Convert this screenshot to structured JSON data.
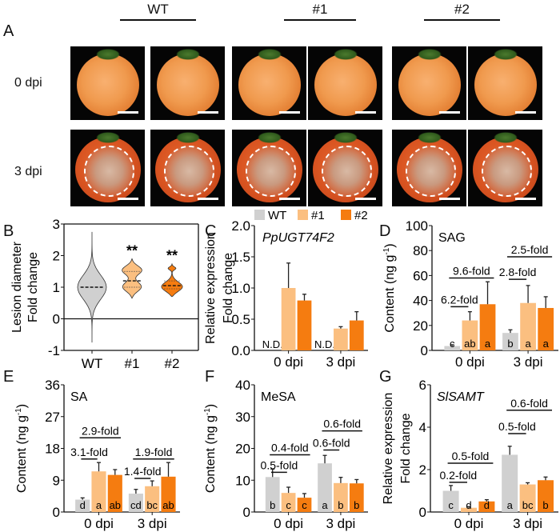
{
  "panel_labels": [
    "A",
    "B",
    "C",
    "D",
    "E",
    "F",
    "G"
  ],
  "panel_a": {
    "genotypes": [
      "WT",
      "#1",
      "#2"
    ],
    "rows": [
      "0 dpi",
      "3 dpi"
    ]
  },
  "legend": {
    "items": [
      {
        "name": "WT",
        "color": "#d0d0d0"
      },
      {
        "name": "#1",
        "color": "#fbbf80"
      },
      {
        "name": "#2",
        "color": "#f57c10"
      }
    ]
  },
  "chart_data": [
    {
      "panel": "B",
      "type": "violin",
      "ylabel": [
        "Lesion diameter",
        "Fold change"
      ],
      "categories": [
        "WT",
        "#1",
        "#2"
      ],
      "ylim": [
        -1,
        3
      ],
      "yticks": [
        -1,
        0,
        1,
        2,
        3
      ],
      "violins": [
        {
          "name": "WT",
          "min": -0.75,
          "max": 2.75,
          "median": 1.0,
          "q1": null,
          "q3": null,
          "color": "#d0d0d0"
        },
        {
          "name": "#1",
          "min": 0.65,
          "max": 1.9,
          "median": 1.2,
          "q1": 1.0,
          "q3": 1.5,
          "color": "#fbbf80",
          "sig": "**"
        },
        {
          "name": "#2",
          "min": 0.7,
          "max": 1.75,
          "median": 1.05,
          "q1": 0.95,
          "q3": 1.2,
          "color": "#f57c10",
          "sig": "**"
        }
      ]
    },
    {
      "panel": "C",
      "type": "bar",
      "title": "PpUGT74F2",
      "title_italic": true,
      "ylabel": [
        "Relative expression",
        "Fold change"
      ],
      "categories": [
        "0 dpi",
        "3 dpi"
      ],
      "ylim": [
        0,
        2
      ],
      "yticks": [
        "0.0",
        "0.5",
        "1.0",
        "1.5",
        "2.0"
      ],
      "series": [
        {
          "name": "WT",
          "values": [
            null,
            null
          ],
          "errors": [
            null,
            null
          ],
          "labels": [
            "N.D.",
            "N.D."
          ]
        },
        {
          "name": "#1",
          "values": [
            1.0,
            0.35
          ],
          "errors": [
            0.4,
            0.03
          ],
          "labels": [
            "",
            ""
          ]
        },
        {
          "name": "#2",
          "values": [
            0.8,
            0.48
          ],
          "errors": [
            0.1,
            0.14
          ],
          "labels": [
            "",
            ""
          ]
        }
      ],
      "comparisons": []
    },
    {
      "panel": "D",
      "type": "bar",
      "title": "SAG",
      "ylabel": [
        "Content (ng g",
        "-1",
        ")"
      ],
      "categories": [
        "0 dpi",
        "3 dpi"
      ],
      "ylim": [
        0,
        100
      ],
      "yticks": [
        "0",
        "20",
        "40",
        "60",
        "80",
        "100"
      ],
      "series": [
        {
          "name": "WT",
          "values": [
            3.5,
            14
          ],
          "errors": [
            1,
            2.5
          ],
          "labels": [
            "c",
            "b"
          ]
        },
        {
          "name": "#1",
          "values": [
            24,
            38
          ],
          "errors": [
            7,
            14
          ],
          "labels": [
            "ab",
            "a"
          ]
        },
        {
          "name": "#2",
          "values": [
            37,
            34
          ],
          "errors": [
            18,
            9
          ],
          "labels": [
            "a",
            "a"
          ]
        }
      ],
      "comparisons": [
        {
          "group": "0 dpi",
          "to": "#1",
          "label": "6.2-fold"
        },
        {
          "group": "0 dpi",
          "to": "#2",
          "label": "9.6-fold"
        },
        {
          "group": "3 dpi",
          "to": "#1",
          "label": "2.8-fold"
        },
        {
          "group": "3 dpi",
          "to": "#2",
          "label": "2.5-fold"
        }
      ]
    },
    {
      "panel": "E",
      "type": "bar",
      "title": "SA",
      "ylabel": [
        "Content (ng g",
        "-1",
        ")"
      ],
      "categories": [
        "0 dpi",
        "3 dpi"
      ],
      "ylim": [
        0,
        36
      ],
      "yticks": [
        "0",
        "9",
        "18",
        "27",
        "36"
      ],
      "series": [
        {
          "name": "WT",
          "values": [
            3.5,
            5.2
          ],
          "errors": [
            0.5,
            1.2
          ],
          "labels": [
            "d",
            "cd"
          ]
        },
        {
          "name": "#1",
          "values": [
            11.5,
            7.3
          ],
          "errors": [
            2.5,
            1.5
          ],
          "labels": [
            "a",
            "bc"
          ]
        },
        {
          "name": "#2",
          "values": [
            10.5,
            10.0
          ],
          "errors": [
            1.5,
            4.0
          ],
          "labels": [
            "ab",
            "ab"
          ]
        }
      ],
      "comparisons": [
        {
          "group": "0 dpi",
          "to": "#1",
          "label": "3.1-fold"
        },
        {
          "group": "0 dpi",
          "to": "#2",
          "label": "2.9-fold"
        },
        {
          "group": "3 dpi",
          "to": "#1",
          "label": "1.4-fold"
        },
        {
          "group": "3 dpi",
          "to": "#2",
          "label": "1.9-fold"
        }
      ]
    },
    {
      "panel": "F",
      "type": "bar",
      "title": "MeSA",
      "ylabel": [
        "Content (ng g",
        "-1",
        ")"
      ],
      "categories": [
        "0 dpi",
        "3 dpi"
      ],
      "ylim": [
        0,
        40
      ],
      "yticks": [
        "0",
        "10",
        "20",
        "30",
        "40"
      ],
      "series": [
        {
          "name": "WT",
          "values": [
            11,
            15.3
          ],
          "errors": [
            2.5,
            2.5
          ],
          "labels": [
            "b",
            "a"
          ]
        },
        {
          "name": "#1",
          "values": [
            6,
            9.1
          ],
          "errors": [
            1.8,
            1.8
          ],
          "labels": [
            "c",
            "b"
          ]
        },
        {
          "name": "#2",
          "values": [
            4.5,
            9.0
          ],
          "errors": [
            1.3,
            1.2
          ],
          "labels": [
            "c",
            "b"
          ]
        }
      ],
      "comparisons": [
        {
          "group": "0 dpi",
          "to": "#1",
          "label": "0.5-fold"
        },
        {
          "group": "0 dpi",
          "to": "#2",
          "label": "0.4-fold"
        },
        {
          "group": "3 dpi",
          "to": "#1",
          "label": "0.6-fold"
        },
        {
          "group": "3 dpi",
          "to": "#2",
          "label": "0.6-fold"
        }
      ]
    },
    {
      "panel": "G",
      "type": "bar",
      "title": "SlSAMT",
      "title_italic": true,
      "ylabel": [
        "Relative expression",
        "Fold change"
      ],
      "categories": [
        "0 dpi",
        "3 dpi"
      ],
      "ylim": [
        0,
        6
      ],
      "yticks": [
        "0",
        "2",
        "4",
        "6"
      ],
      "series": [
        {
          "name": "WT",
          "values": [
            1.0,
            2.7
          ],
          "errors": [
            0.25,
            0.4
          ],
          "labels": [
            "c",
            "a"
          ]
        },
        {
          "name": "#1",
          "values": [
            0.2,
            1.3
          ],
          "errors": [
            0.05,
            0.08
          ],
          "labels": [
            "d",
            "bc"
          ]
        },
        {
          "name": "#2",
          "values": [
            0.5,
            1.5
          ],
          "errors": [
            0.08,
            0.15
          ],
          "labels": [
            "d",
            "b"
          ]
        }
      ],
      "comparisons": [
        {
          "group": "0 dpi",
          "to": "#1",
          "label": "0.2-fold"
        },
        {
          "group": "0 dpi",
          "to": "#2",
          "label": "0.5-fold"
        },
        {
          "group": "3 dpi",
          "to": "#1",
          "label": "0.5-fold"
        },
        {
          "group": "3 dpi",
          "to": "#2",
          "label": "0.6-fold"
        }
      ]
    }
  ]
}
